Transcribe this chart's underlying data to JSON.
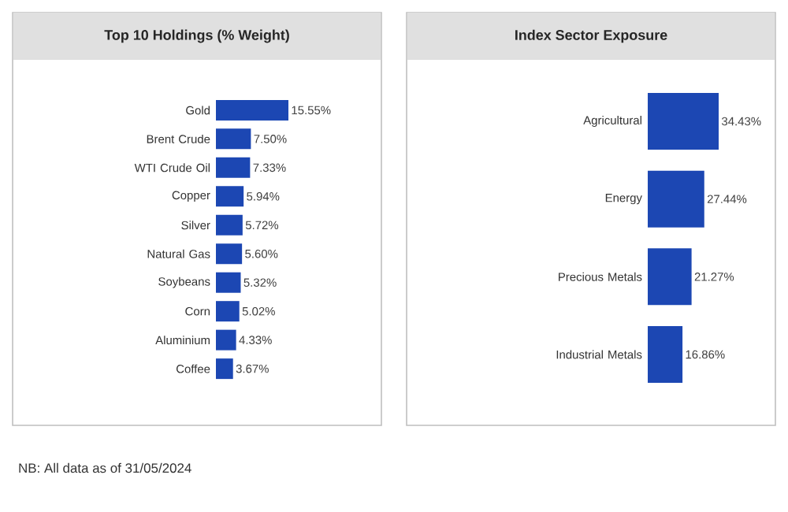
{
  "chart_data": [
    {
      "type": "bar",
      "orientation": "horizontal",
      "title": "Top 10 Holdings (% Weight)",
      "categories": [
        "Gold",
        "Brent Crude",
        "WTI Crude Oil",
        "Copper",
        "Silver",
        "Natural Gas",
        "Soybeans",
        "Corn",
        "Aluminium",
        "Coffee"
      ],
      "values": [
        15.55,
        7.5,
        7.33,
        5.94,
        5.72,
        5.6,
        5.32,
        5.02,
        4.33,
        3.67
      ],
      "value_labels": [
        "15.55%",
        "7.50%",
        "7.33%",
        "5.94%",
        "5.72%",
        "5.60%",
        "5.32%",
        "5.02%",
        "4.33%",
        "3.67%"
      ],
      "color": "#1c47b3",
      "tick_labels": "y"
    },
    {
      "type": "bar",
      "orientation": "horizontal",
      "title": "Index Sector Exposure",
      "categories": [
        "Agricultural",
        "Energy",
        "Precious Metals",
        "Industrial Metals"
      ],
      "values": [
        34.43,
        27.44,
        21.27,
        16.86
      ],
      "value_labels": [
        "34.43%",
        "27.44%",
        "21.27%",
        "16.86%"
      ],
      "color": "#1c47b3",
      "tick_labels": "y",
      "annotations": [
        "NB: All data as of 31/05/2024"
      ]
    }
  ]
}
